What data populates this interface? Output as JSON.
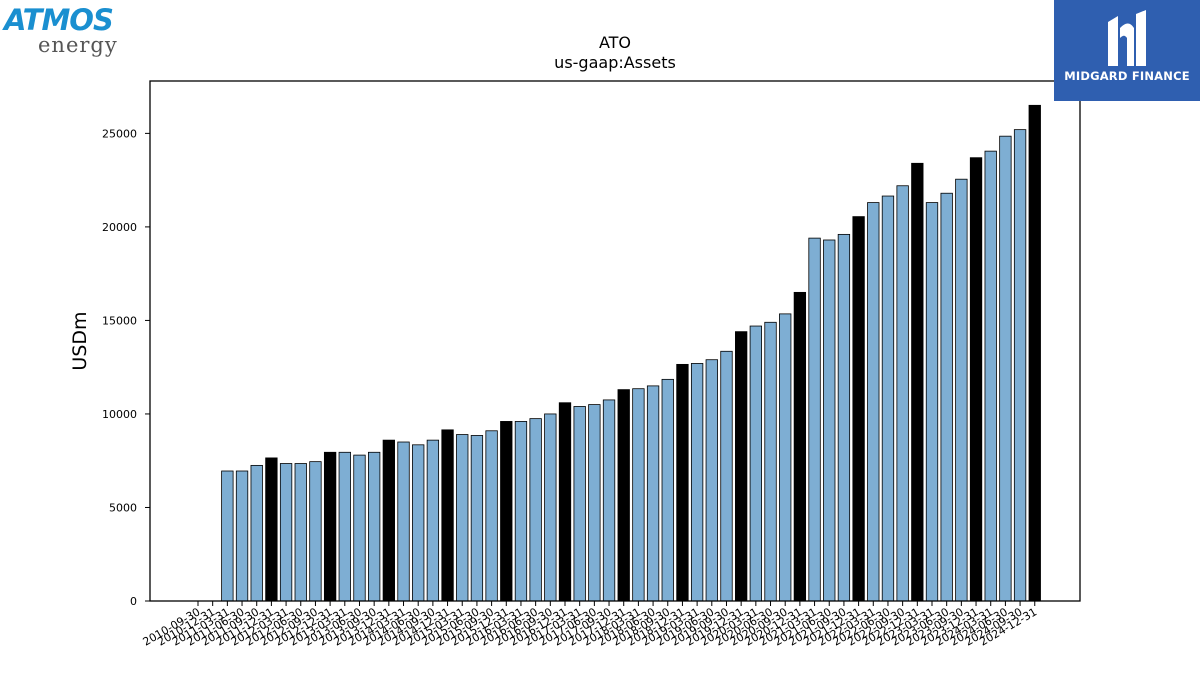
{
  "logos": {
    "atmos_line1": "ATMOS",
    "atmos_line2": "energy",
    "midgard": "MIDGARD FINANCE"
  },
  "colors": {
    "bar_regular": "#7eaed3",
    "bar_highlight": "#000000",
    "atmos_blue": "#1a8fd0",
    "midgard_bg": "#2f5fb0"
  },
  "chart_data": {
    "type": "bar",
    "title": "ATO",
    "subtitle": "us-gaap:Assets",
    "ylabel": "USDm",
    "xlabel": "",
    "ylim": [
      0,
      27800
    ],
    "yticks": [
      0,
      5000,
      10000,
      15000,
      20000,
      25000
    ],
    "grid": false,
    "legend": "none",
    "categories": [
      "2010-09-30",
      "2010-12-31",
      "2011-03-31",
      "2011-06-30",
      "2011-09-30",
      "2011-12-31",
      "2012-03-31",
      "2012-06-30",
      "2012-09-30",
      "2012-12-31",
      "2013-03-31",
      "2013-06-30",
      "2013-09-30",
      "2013-12-31",
      "2014-03-31",
      "2014-06-30",
      "2014-09-30",
      "2014-12-31",
      "2015-03-31",
      "2015-06-30",
      "2015-09-30",
      "2015-12-31",
      "2016-03-31",
      "2016-06-30",
      "2016-09-30",
      "2016-12-31",
      "2017-03-31",
      "2017-06-30",
      "2017-09-30",
      "2017-12-31",
      "2018-03-31",
      "2018-06-30",
      "2018-09-30",
      "2018-12-31",
      "2019-03-31",
      "2019-06-30",
      "2019-09-30",
      "2019-12-31",
      "2020-03-31",
      "2020-06-30",
      "2020-09-30",
      "2020-12-31",
      "2021-03-31",
      "2021-06-30",
      "2021-09-30",
      "2021-12-31",
      "2022-03-31",
      "2022-06-30",
      "2022-09-30",
      "2022-12-31",
      "2023-03-31",
      "2023-06-30",
      "2023-09-30",
      "2023-12-31",
      "2024-03-31",
      "2024-06-30",
      "2024-09-30",
      "2024-12-31"
    ],
    "series": [
      {
        "values": [
          0,
          0,
          6950,
          6950,
          7250,
          7650,
          7350,
          7350,
          7450,
          7950,
          7950,
          7800,
          7950,
          8600,
          8500,
          8350,
          8600,
          9150,
          8900,
          8850,
          9100,
          9600,
          9600,
          9750,
          10000,
          10600,
          10400,
          10500,
          10750,
          11300,
          11350,
          11500,
          11850,
          12650,
          12700,
          12900,
          13350,
          14400,
          14700,
          14900,
          15350,
          16500,
          19400,
          19300,
          19600,
          20550,
          21300,
          21650,
          22200,
          23400,
          21300,
          21800,
          22550,
          23700,
          24050,
          24850,
          25200,
          26500
        ],
        "highlight": [
          false,
          false,
          false,
          false,
          false,
          true,
          false,
          false,
          false,
          true,
          false,
          false,
          false,
          true,
          false,
          false,
          false,
          true,
          false,
          false,
          false,
          true,
          false,
          false,
          false,
          true,
          false,
          false,
          false,
          true,
          false,
          false,
          false,
          true,
          false,
          false,
          false,
          true,
          false,
          false,
          false,
          true,
          false,
          false,
          false,
          true,
          false,
          false,
          false,
          true,
          false,
          false,
          false,
          true,
          false,
          false,
          false,
          true
        ]
      }
    ]
  }
}
